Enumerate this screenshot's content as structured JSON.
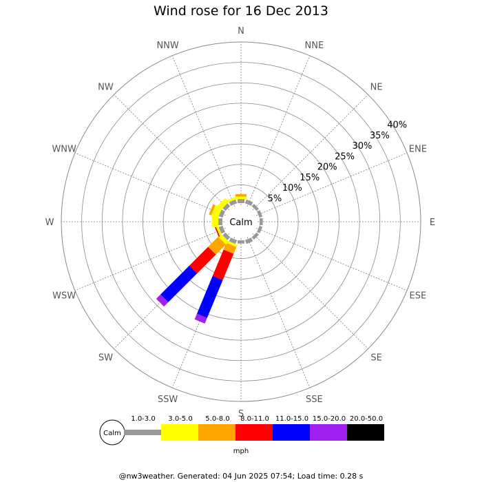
{
  "title": "Wind rose for 16 Dec 2013",
  "footer": "@nw3weather. Generated: 04 Jun 2025 07:54; Load time: 0.28 s",
  "chart_data": {
    "type": "wind-rose",
    "title": "Wind rose for 16 Dec 2013",
    "directions": [
      "N",
      "NNE",
      "NE",
      "ENE",
      "E",
      "ESE",
      "SE",
      "SSE",
      "S",
      "SSW",
      "SW",
      "WSW",
      "W",
      "WNW",
      "NW",
      "NNW"
    ],
    "ring_labels": [
      "5%",
      "10%",
      "15%",
      "20%",
      "25%",
      "30%",
      "35%",
      "40%"
    ],
    "rmax_percent": 40,
    "calm_label": "Calm",
    "unit": "mph",
    "speed_bins": [
      {
        "label": "1.0-3.0",
        "color": "#999999"
      },
      {
        "label": "3.0-5.0",
        "color": "#ffff00"
      },
      {
        "label": "5.0-8.0",
        "color": "#ffa500"
      },
      {
        "label": "8.0-11.0",
        "color": "#ff0000"
      },
      {
        "label": "11.0-15.0",
        "color": "#0000ff"
      },
      {
        "label": "15.0-20.0",
        "color": "#a020f0"
      },
      {
        "label": "20.0-50.0",
        "color": "#000000"
      }
    ],
    "frequencies_percent": {
      "N": [
        1.0,
        0.6,
        0.6,
        0,
        0,
        0,
        0
      ],
      "NNE": [
        1.0,
        0,
        0,
        0,
        0,
        0,
        0
      ],
      "NE": [
        0.8,
        0,
        0,
        0,
        0,
        0,
        0
      ],
      "ENE": [
        0.8,
        0,
        0,
        0,
        0,
        0,
        0
      ],
      "E": [
        0.8,
        0,
        0,
        0,
        0,
        0,
        0
      ],
      "ESE": [
        0.8,
        0,
        0,
        0,
        0,
        0,
        0
      ],
      "SE": [
        0.8,
        0,
        0,
        0,
        0,
        0,
        0
      ],
      "SSE": [
        1.0,
        0,
        0,
        0,
        0,
        0,
        0
      ],
      "S": [
        0.8,
        0,
        0,
        0,
        0,
        0,
        0
      ],
      "SSW": [
        1.0,
        0.6,
        1.8,
        7.0,
        10.0,
        1.5,
        0
      ],
      "SW": [
        1.0,
        1.0,
        3.5,
        6.5,
        10.0,
        1.5,
        0
      ],
      "WSW": [
        1.0,
        0.6,
        0,
        0.3,
        0,
        0,
        0
      ],
      "W": [
        1.0,
        1.6,
        0,
        0,
        0,
        0,
        0
      ],
      "WNW": [
        1.0,
        1.8,
        0.6,
        0,
        0,
        0,
        0
      ],
      "NW": [
        1.0,
        1.3,
        0,
        0,
        0,
        0,
        0
      ],
      "NNW": [
        1.0,
        0.6,
        0,
        0,
        0,
        0,
        0
      ]
    }
  }
}
